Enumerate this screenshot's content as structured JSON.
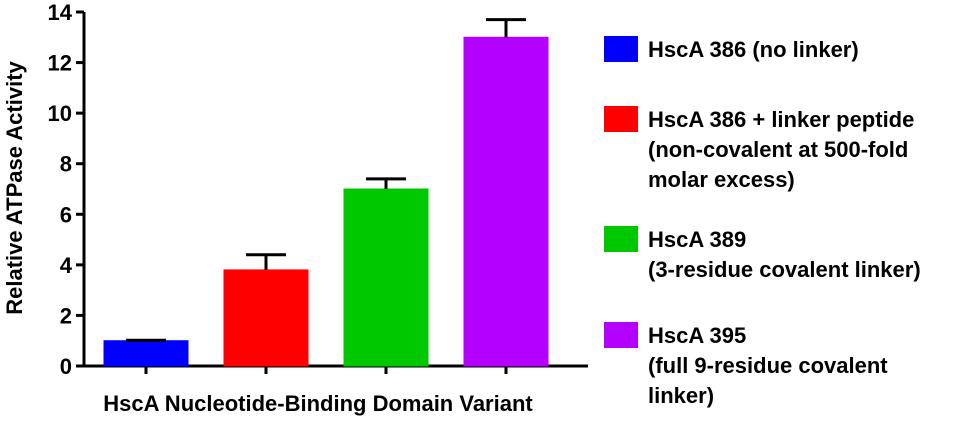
{
  "chart_data": {
    "type": "bar",
    "title": "",
    "xlabel": "HscA Nucleotide-Binding Domain Variant",
    "ylabel": "Relative ATPase Activity",
    "ylim": [
      0,
      14
    ],
    "yticks": [
      0,
      2,
      4,
      6,
      8,
      10,
      12,
      14
    ],
    "categories": [
      "HscA 386 (no linker)",
      "HscA 386 + linker peptide (non-covalent at 500-fold molar excess)",
      "HscA 389 (3-residue covalent linker)",
      "HscA 395 (full 9-residue covalent linker)"
    ],
    "values": [
      1.0,
      3.8,
      7.0,
      13.0
    ],
    "errors": [
      0.02,
      0.6,
      0.4,
      0.7
    ],
    "colors": [
      "#0000ff",
      "#ff0000",
      "#00c800",
      "#b400ff"
    ],
    "legend_position": "right",
    "grid": false,
    "legend": [
      {
        "lines": [
          "HscA 386 (no linker)"
        ],
        "color": "#0000ff"
      },
      {
        "lines": [
          "HscA 386 + linker peptide",
          "(non-covalent at 500-fold",
          "molar excess)"
        ],
        "color": "#ff0000"
      },
      {
        "lines": [
          "HscA 389",
          "(3-residue covalent linker)"
        ],
        "color": "#00c800"
      },
      {
        "lines": [
          "HscA 395",
          "(full 9-residue covalent",
          "linker)"
        ],
        "color": "#b400ff"
      }
    ]
  }
}
